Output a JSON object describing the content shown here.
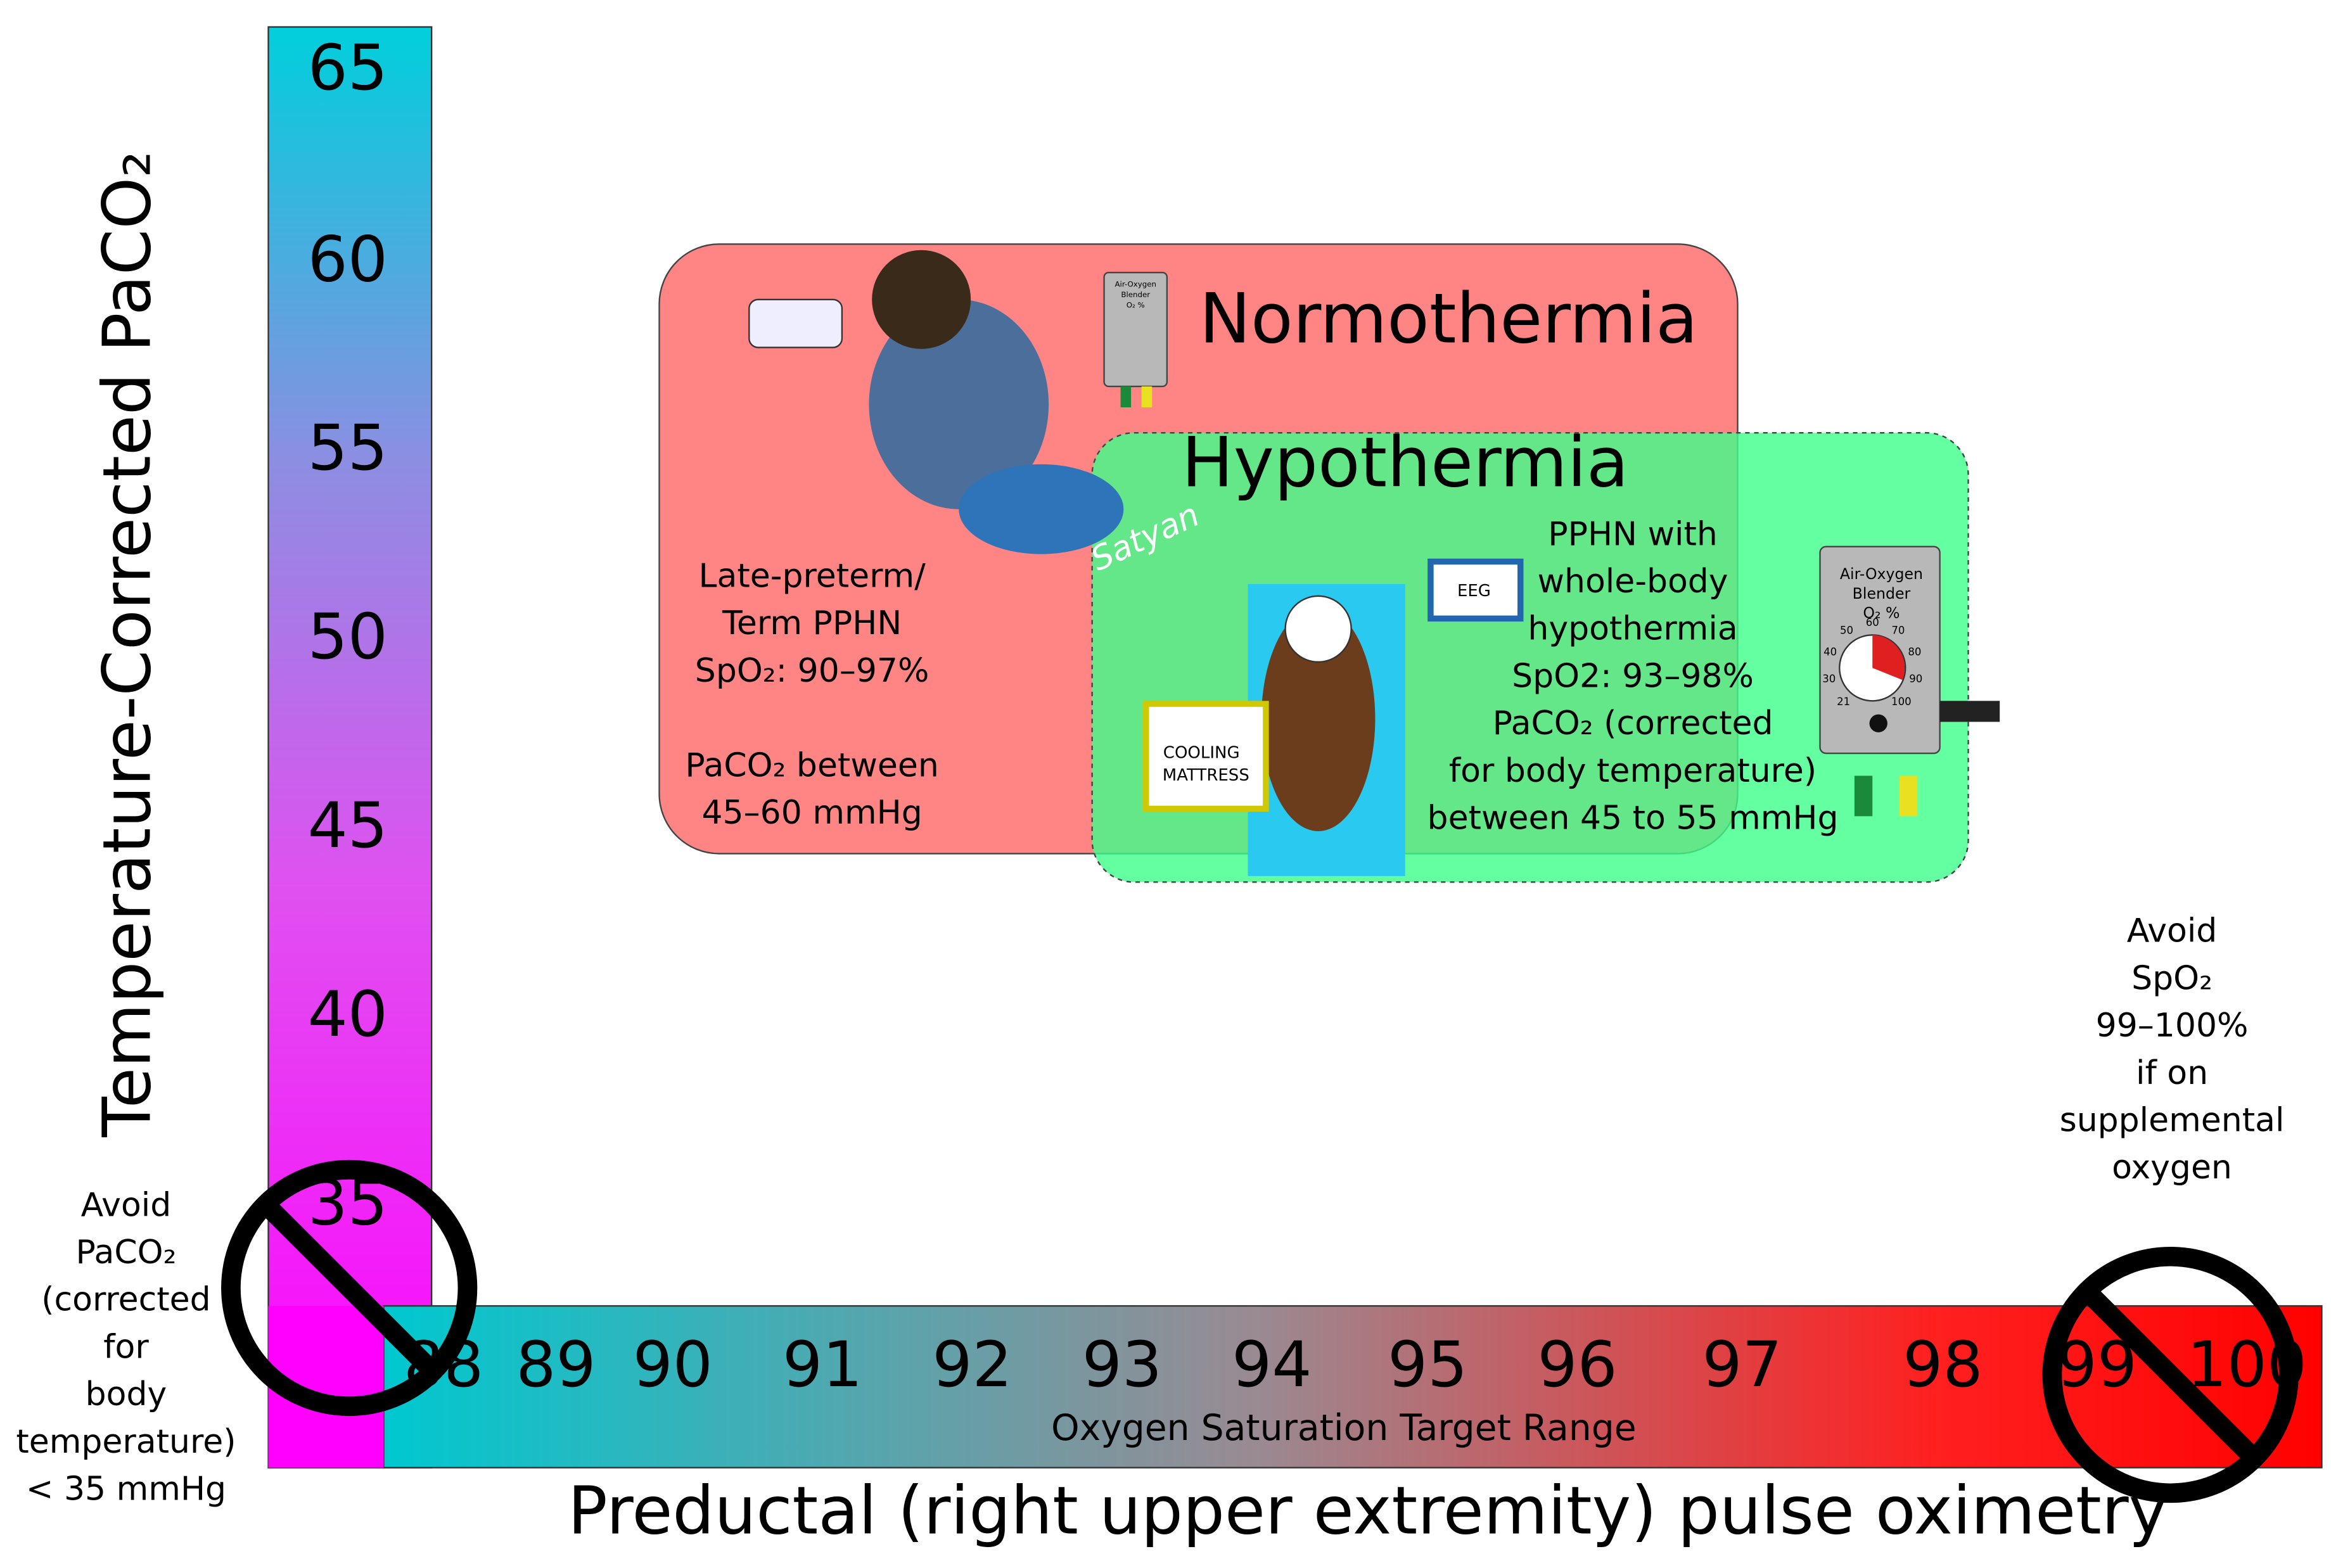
{
  "y_axis": {
    "title": "Temperature-Corrected PaCO₂",
    "ticks": [
      65,
      60,
      55,
      50,
      45,
      40,
      35
    ]
  },
  "x_axis": {
    "title": "Preductal (right upper extremity) pulse oximetry",
    "band_label": "Oxygen Saturation Target Range",
    "ticks": [
      88,
      89,
      90,
      91,
      92,
      93,
      94,
      95,
      96,
      97,
      98,
      99,
      100
    ]
  },
  "normothermia": {
    "title": "Normothermia",
    "lines": [
      "Late-preterm/",
      "Term PPHN",
      "SpO₂: 90–97%",
      "",
      "PaCO₂ between",
      "45–60 mmHg"
    ],
    "signature": "Satyan"
  },
  "hypothermia": {
    "title": "Hypothermia",
    "lines": [
      "PPHN with",
      "whole-body",
      "hypothermia",
      "SpO2: 93–98%",
      "PaCO₂ (corrected",
      "for body temperature)",
      "between 45 to 55 mmHg"
    ],
    "eeg": "EEG",
    "mattress": [
      "COOLING",
      "MATTRESS"
    ]
  },
  "blender": {
    "lines": [
      "Air-Oxygen",
      "Blender",
      "O₂ %"
    ],
    "dial": [
      "21",
      "30",
      "40",
      "50",
      "60",
      "70",
      "80",
      "90",
      "100"
    ]
  },
  "avoid_paco2": [
    "Avoid",
    "PaCO₂",
    "(corrected",
    "for",
    "body",
    "temperature)",
    "< 35 mmHg"
  ],
  "avoid_spo2": [
    "Avoid",
    "SpO₂",
    "99–100%",
    "if on",
    "supplemental",
    "oxygen"
  ]
}
